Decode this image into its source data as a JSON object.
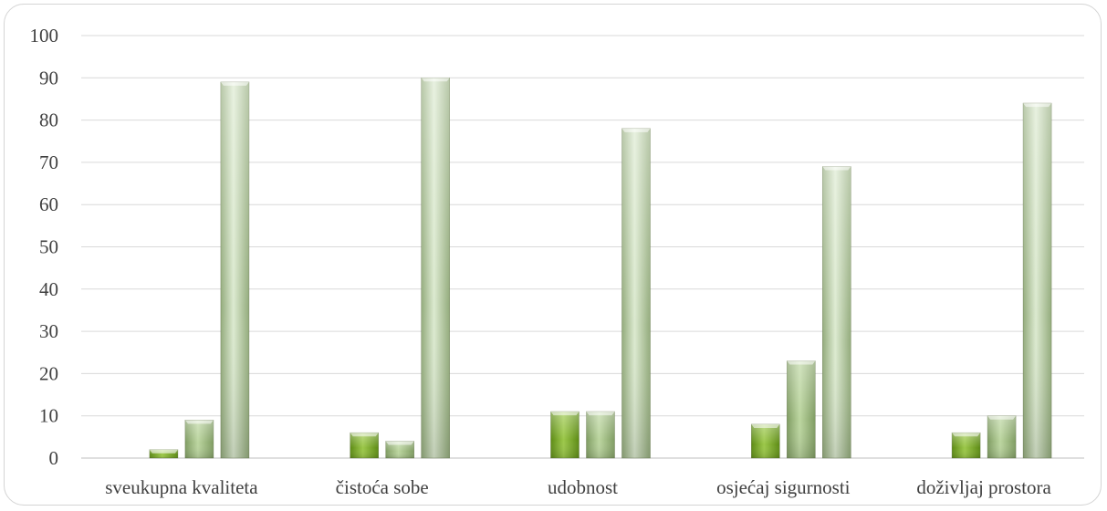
{
  "chart_data": {
    "type": "bar",
    "title": "",
    "xlabel": "",
    "ylabel": "",
    "categories": [
      "sveukupna kvaliteta",
      "čistoća sobe",
      "udobnost",
      "osjećaj sigurnosti",
      "doživljaj prostora"
    ],
    "series": [
      {
        "values": [
          0,
          0,
          0,
          0,
          0
        ],
        "color": "#4e7a14"
      },
      {
        "values": [
          2,
          6,
          11,
          8,
          6
        ],
        "color": "#7fa83a"
      },
      {
        "values": [
          9,
          4,
          11,
          23,
          10
        ],
        "color": "#a9c48a"
      },
      {
        "values": [
          89,
          90,
          78,
          69,
          84
        ],
        "color": "#c9dcb2"
      }
    ],
    "ylim": [
      0,
      100
    ],
    "yticks": [
      0,
      10,
      20,
      30,
      40,
      50,
      60,
      70,
      80,
      90,
      100
    ],
    "grid": true,
    "legend": "none"
  }
}
